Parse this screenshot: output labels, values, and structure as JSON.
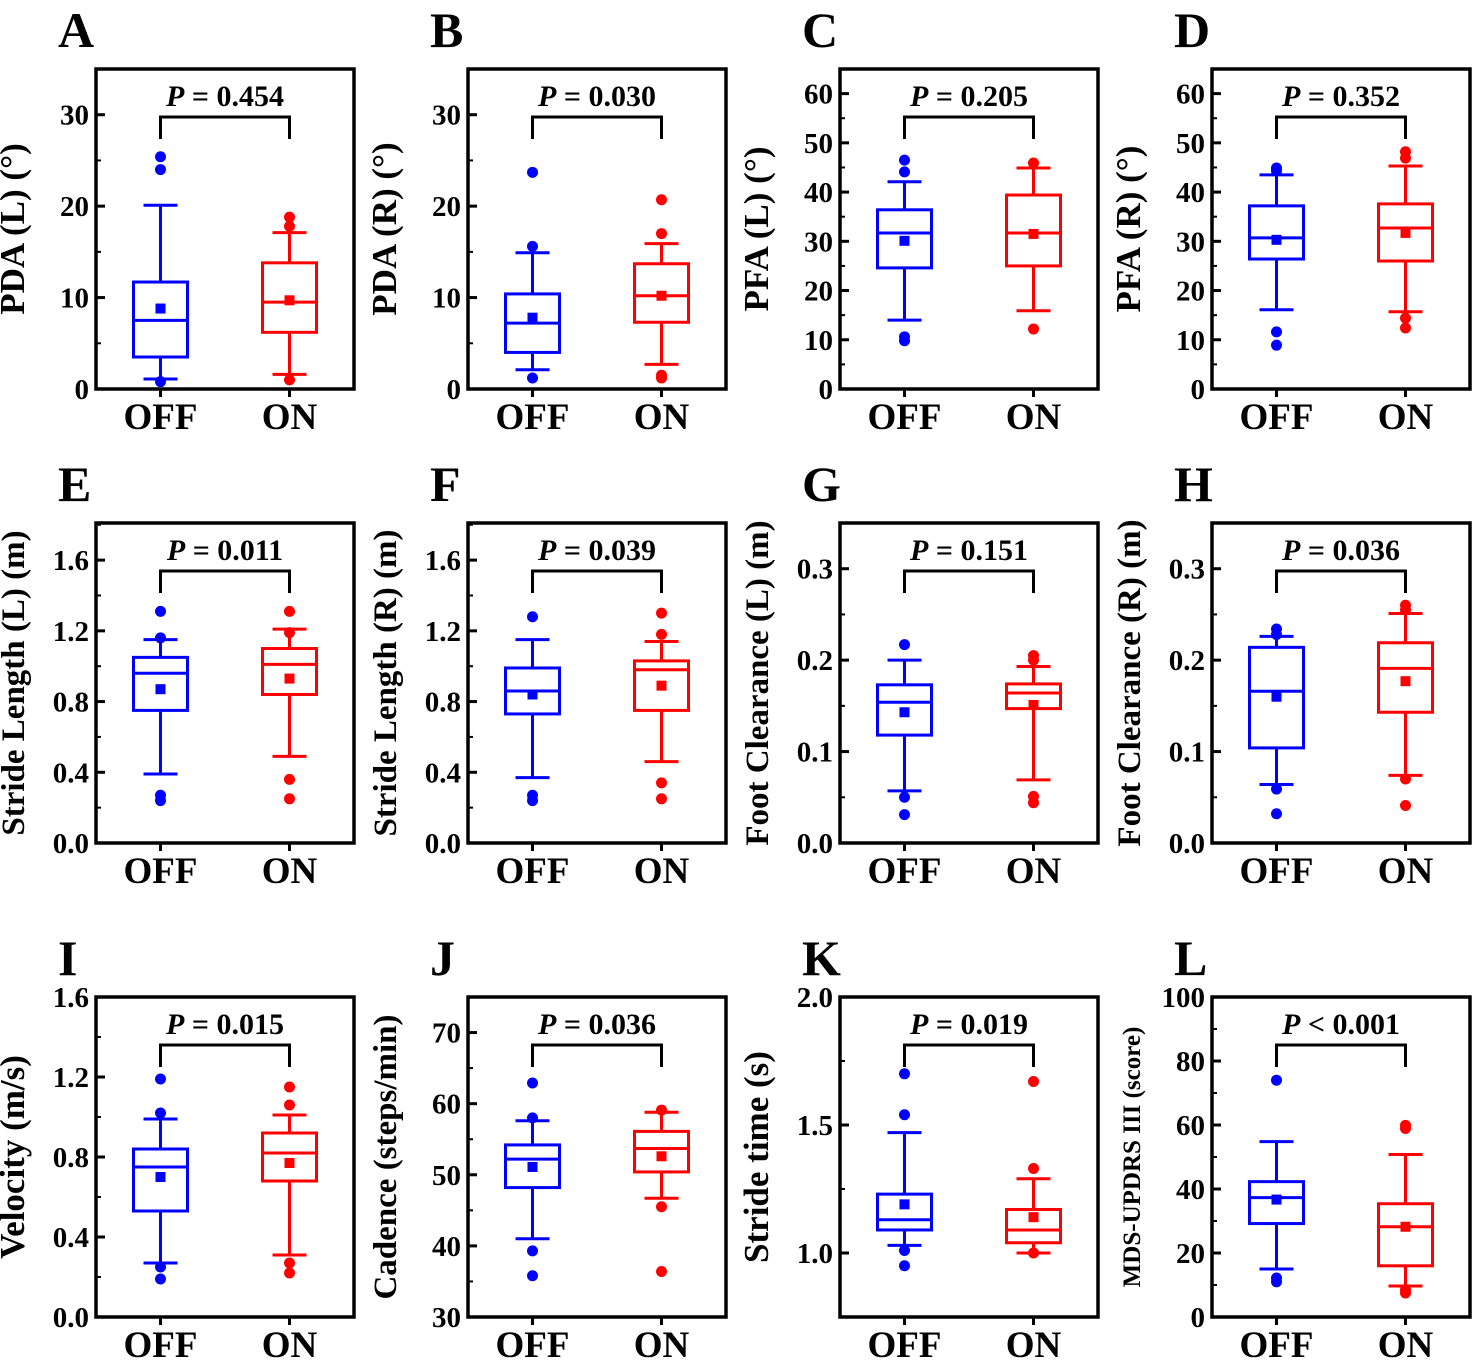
{
  "colors": {
    "off": "#0000ff",
    "on": "#ff0000",
    "axis": "#000000"
  },
  "categories": [
    "OFF",
    "ON"
  ],
  "chart_data": [
    {
      "panel": "A",
      "type": "box",
      "ylabel": "PDA (L) (°)",
      "ylim": [
        0,
        35
      ],
      "ticks": [
        0,
        10,
        20,
        30
      ],
      "minor": 5,
      "p_label": "P",
      "p_value": "= 0.454",
      "series": [
        {
          "name": "OFF",
          "whisker_low": 1.1,
          "q1": 3.5,
          "median": 7.5,
          "q3": 11.7,
          "whisker_high": 20.1,
          "mean": 8.8,
          "outliers": [
            25.4,
            24.0,
            0.8
          ]
        },
        {
          "name": "ON",
          "whisker_low": 1.6,
          "q1": 6.2,
          "median": 9.5,
          "q3": 13.8,
          "whisker_high": 17.1,
          "mean": 9.7,
          "outliers": [
            18.8,
            17.8,
            1.0
          ]
        }
      ]
    },
    {
      "panel": "B",
      "type": "box",
      "ylabel": "PDA (R) (°)",
      "ylim": [
        0,
        35
      ],
      "ticks": [
        0,
        10,
        20,
        30
      ],
      "minor": 5,
      "p_label": "P",
      "p_value": "= 0.030",
      "series": [
        {
          "name": "OFF",
          "whisker_low": 2.1,
          "q1": 4.0,
          "median": 7.2,
          "q3": 10.4,
          "whisker_high": 14.9,
          "mean": 7.8,
          "outliers": [
            23.7,
            15.6,
            1.2
          ]
        },
        {
          "name": "ON",
          "whisker_low": 2.7,
          "q1": 7.3,
          "median": 10.2,
          "q3": 13.7,
          "whisker_high": 15.9,
          "mean": 10.2,
          "outliers": [
            20.7,
            17.0,
            1.5,
            1.2
          ]
        }
      ]
    },
    {
      "panel": "C",
      "type": "box",
      "ylabel": "PFA (L) (°)",
      "ylim": [
        0,
        65
      ],
      "ticks": [
        0,
        10,
        20,
        30,
        40,
        50,
        60
      ],
      "minor": 5,
      "p_label": "P",
      "p_value": "= 0.205",
      "series": [
        {
          "name": "OFF",
          "whisker_low": 14.0,
          "q1": 24.6,
          "median": 31.7,
          "q3": 36.4,
          "whisker_high": 42.1,
          "mean": 30.1,
          "outliers": [
            46.5,
            44.1,
            10.6,
            9.8
          ]
        },
        {
          "name": "ON",
          "whisker_low": 15.9,
          "q1": 25.0,
          "median": 31.7,
          "q3": 39.4,
          "whisker_high": 44.9,
          "mean": 31.5,
          "outliers": [
            45.9,
            12.2
          ]
        }
      ]
    },
    {
      "panel": "D",
      "type": "box",
      "ylabel": "PFA (R) (°)",
      "ylim": [
        0,
        65
      ],
      "ticks": [
        0,
        10,
        20,
        30,
        40,
        50,
        60
      ],
      "minor": 5,
      "p_label": "P",
      "p_value": "= 0.352",
      "series": [
        {
          "name": "OFF",
          "whisker_low": 16.1,
          "q1": 26.4,
          "median": 30.7,
          "q3": 37.2,
          "whisker_high": 43.5,
          "mean": 30.3,
          "outliers": [
            44.9,
            44.3,
            11.6,
            8.9
          ]
        },
        {
          "name": "ON",
          "whisker_low": 15.7,
          "q1": 26.0,
          "median": 32.7,
          "q3": 37.6,
          "whisker_high": 45.3,
          "mean": 31.7,
          "outliers": [
            48.2,
            46.9,
            14.4,
            12.4
          ]
        }
      ]
    },
    {
      "panel": "E",
      "type": "box",
      "ylabel": "Stride Length (L) (m)",
      "ylim": [
        0,
        1.81
      ],
      "ticks": [
        "0.0",
        "0.4",
        "0.8",
        "1.2",
        "1.6"
      ],
      "minor": 0.2,
      "p_label": "P",
      "p_value": "= 0.011",
      "series": [
        {
          "name": "OFF",
          "whisker_low": 0.39,
          "q1": 0.75,
          "median": 0.96,
          "q3": 1.05,
          "whisker_high": 1.15,
          "mean": 0.87,
          "outliers": [
            1.31,
            1.16,
            0.27,
            0.24
          ]
        },
        {
          "name": "ON",
          "whisker_low": 0.49,
          "q1": 0.84,
          "median": 1.01,
          "q3": 1.1,
          "whisker_high": 1.21,
          "mean": 0.93,
          "outliers": [
            1.31,
            1.19,
            0.36,
            0.25
          ]
        }
      ]
    },
    {
      "panel": "F",
      "type": "box",
      "ylabel": "Stride Length (R) (m)",
      "ylim": [
        0,
        1.81
      ],
      "ticks": [
        "0.0",
        "0.4",
        "0.8",
        "1.2",
        "1.6"
      ],
      "minor": 0.2,
      "p_label": "P",
      "p_value": "= 0.039",
      "series": [
        {
          "name": "OFF",
          "whisker_low": 0.37,
          "q1": 0.73,
          "median": 0.86,
          "q3": 0.99,
          "whisker_high": 1.15,
          "mean": 0.84,
          "outliers": [
            1.28,
            0.27,
            0.24
          ]
        },
        {
          "name": "ON",
          "whisker_low": 0.46,
          "q1": 0.75,
          "median": 0.98,
          "q3": 1.03,
          "whisker_high": 1.14,
          "mean": 0.89,
          "outliers": [
            1.3,
            1.18,
            0.34,
            0.25
          ]
        }
      ]
    },
    {
      "panel": "G",
      "type": "box",
      "ylabel": "Foot Clearance (L) (m)",
      "ylim": [
        0,
        0.35
      ],
      "ticks": [
        "0.0",
        "0.1",
        "0.2",
        "0.3"
      ],
      "minor": 0.05,
      "p_label": "P",
      "p_value": "= 0.151",
      "series": [
        {
          "name": "OFF",
          "whisker_low": 0.057,
          "q1": 0.118,
          "median": 0.154,
          "q3": 0.173,
          "whisker_high": 0.2,
          "mean": 0.143,
          "outliers": [
            0.217,
            0.05,
            0.031
          ]
        },
        {
          "name": "ON",
          "whisker_low": 0.069,
          "q1": 0.147,
          "median": 0.164,
          "q3": 0.174,
          "whisker_high": 0.193,
          "mean": 0.151,
          "outliers": [
            0.205,
            0.2,
            0.051,
            0.044
          ]
        }
      ]
    },
    {
      "panel": "H",
      "type": "box",
      "ylabel": "Foot Clearance (R) (m)",
      "ylim": [
        0,
        0.35
      ],
      "ticks": [
        "0.0",
        "0.1",
        "0.2",
        "0.3"
      ],
      "minor": 0.05,
      "p_label": "P",
      "p_value": "= 0.036",
      "series": [
        {
          "name": "OFF",
          "whisker_low": 0.064,
          "q1": 0.104,
          "median": 0.166,
          "q3": 0.214,
          "whisker_high": 0.226,
          "mean": 0.16,
          "outliers": [
            0.234,
            0.228,
            0.059,
            0.032
          ]
        },
        {
          "name": "ON",
          "whisker_low": 0.074,
          "q1": 0.143,
          "median": 0.191,
          "q3": 0.219,
          "whisker_high": 0.251,
          "mean": 0.177,
          "outliers": [
            0.26,
            0.255,
            0.07,
            0.041
          ]
        }
      ]
    },
    {
      "panel": "I",
      "type": "box",
      "ylabel": "Velocity (m/s)",
      "ylim": [
        0,
        1.6
      ],
      "ticks": [
        "0.0",
        "0.4",
        "0.8",
        "1.2",
        "1.6"
      ],
      "minor": 0.2,
      "p_label": "P",
      "p_value": "= 0.015",
      "series": [
        {
          "name": "OFF",
          "whisker_low": 0.27,
          "q1": 0.53,
          "median": 0.75,
          "q3": 0.84,
          "whisker_high": 0.99,
          "mean": 0.7,
          "outliers": [
            1.19,
            1.02,
            0.25,
            0.19
          ]
        },
        {
          "name": "ON",
          "whisker_low": 0.31,
          "q1": 0.68,
          "median": 0.82,
          "q3": 0.92,
          "whisker_high": 1.01,
          "mean": 0.77,
          "outliers": [
            1.15,
            1.06,
            0.27,
            0.22
          ]
        }
      ]
    },
    {
      "panel": "J",
      "type": "box",
      "ylabel": "Cadence (steps/min)",
      "ylim": [
        30,
        75
      ],
      "ticks": [
        30,
        40,
        50,
        60,
        70
      ],
      "minor": 5,
      "p_label": "P",
      "p_value": "= 0.036",
      "series": [
        {
          "name": "OFF",
          "whisker_low": 41.0,
          "q1": 48.2,
          "median": 52.2,
          "q3": 54.2,
          "whisker_high": 57.6,
          "mean": 51.1,
          "outliers": [
            62.9,
            58.0,
            39.3,
            35.8
          ]
        },
        {
          "name": "ON",
          "whisker_low": 46.7,
          "q1": 50.4,
          "median": 53.7,
          "q3": 56.1,
          "whisker_high": 58.8,
          "mean": 52.6,
          "outliers": [
            59.1,
            45.5,
            36.4
          ]
        }
      ]
    },
    {
      "panel": "K",
      "type": "box",
      "ylabel": "Stride time (s)",
      "ylim": [
        0.75,
        2.0
      ],
      "ticks": [
        "1.0",
        "1.5",
        "2.0"
      ],
      "minor": 0.25,
      "p_label": "P",
      "p_value": "= 0.019",
      "series": [
        {
          "name": "OFF",
          "whisker_low": 1.03,
          "q1": 1.09,
          "median": 1.13,
          "q3": 1.23,
          "whisker_high": 1.47,
          "mean": 1.19,
          "outliers": [
            1.7,
            1.54,
            1.01,
            0.95
          ]
        },
        {
          "name": "ON",
          "whisker_low": 1.0,
          "q1": 1.04,
          "median": 1.09,
          "q3": 1.17,
          "whisker_high": 1.29,
          "mean": 1.14,
          "outliers": [
            1.67,
            1.33,
            1.0
          ]
        }
      ]
    },
    {
      "panel": "L",
      "type": "box",
      "ylabel": "MDS-UPDRS III (score)",
      "ylim": [
        0,
        100
      ],
      "ticks": [
        0,
        20,
        40,
        60,
        80,
        100
      ],
      "minor": 10,
      "p_label": "P",
      "p_value": "< 0.001",
      "series": [
        {
          "name": "OFF",
          "whisker_low": 15.0,
          "q1": 29.2,
          "median": 37.3,
          "q3": 42.3,
          "whisker_high": 54.8,
          "mean": 36.7,
          "outliers": [
            74.0,
            12.2,
            11.0
          ]
        },
        {
          "name": "ON",
          "whisker_low": 9.7,
          "q1": 16.0,
          "median": 28.2,
          "q3": 35.4,
          "whisker_high": 50.8,
          "mean": 28.2,
          "outliers": [
            59.9,
            58.9,
            8.5,
            7.5
          ]
        }
      ]
    }
  ]
}
